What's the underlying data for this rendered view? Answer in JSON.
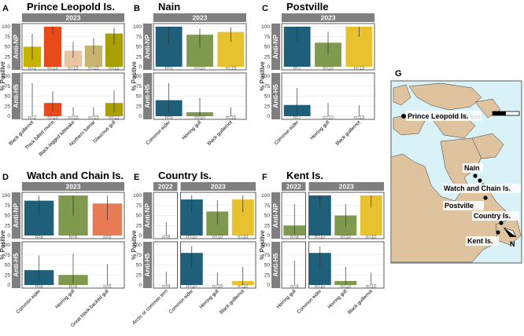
{
  "y_axis_label": "% Positive",
  "chart_data": [
    {
      "type": "bar",
      "letter": "A",
      "title": "Prince Leopold Is.",
      "strips": [
        {
          "label": "2023",
          "from": 0,
          "to": 4
        }
      ],
      "categories": [
        "Black guillemot",
        "Thick-billed murre",
        "Black-legged kittiwake",
        "Northern fulmar",
        "Glaucous gull"
      ],
      "colors": [
        "#c8b400",
        "#e84a1a",
        "#e8c4a0",
        "#c8b46e",
        "#a8a000"
      ],
      "ylim": [
        0,
        100
      ],
      "yticks": [
        0,
        25,
        50,
        75,
        100
      ],
      "series": [
        {
          "name": "Anti-NP",
          "values": [
            50,
            100,
            40,
            53,
            83
          ],
          "lower": [
            18,
            80,
            22,
            30,
            55
          ],
          "upper": [
            82,
            100,
            62,
            72,
            97
          ]
        },
        {
          "name": "Anti-H5",
          "values": [
            0,
            33,
            0,
            0,
            33
          ],
          "lower": [
            0,
            12,
            0,
            0,
            10
          ],
          "upper": [
            82,
            62,
            22,
            22,
            65
          ]
        }
      ],
      "n_labels": [
        "n=2",
        "n=15",
        "n=15",
        "n=15",
        "n=12"
      ]
    },
    {
      "type": "bar",
      "letter": "B",
      "title": "Nain",
      "strips": [
        {
          "label": "2023",
          "from": 0,
          "to": 2
        }
      ],
      "categories": [
        "Common eider",
        "Herring gull",
        "Black guillemot"
      ],
      "colors": [
        "#1f5f7a",
        "#7f9a4e",
        "#e8c22e"
      ],
      "ylim": [
        0,
        100
      ],
      "yticks": [
        0,
        25,
        50,
        75,
        100
      ],
      "series": [
        {
          "name": "Anti-NP",
          "values": [
            100,
            80,
            87
          ],
          "lower": [
            55,
            48,
            62
          ],
          "upper": [
            100,
            95,
            98
          ]
        },
        {
          "name": "Anti-H5",
          "values": [
            40,
            10,
            0
          ],
          "lower": [
            8,
            0,
            0
          ],
          "upper": [
            82,
            45,
            22
          ]
        }
      ],
      "n_labels": [
        "n=5",
        "n=10",
        "n=15"
      ]
    },
    {
      "type": "bar",
      "letter": "C",
      "title": "Postville",
      "strips": [
        {
          "label": "2023",
          "from": 0,
          "to": 2
        }
      ],
      "categories": [
        "Common eider",
        "Herring gull",
        "Black guillemot"
      ],
      "colors": [
        "#1f5f7a",
        "#7f9a4e",
        "#e8c22e"
      ],
      "ylim": [
        0,
        100
      ],
      "yticks": [
        0,
        25,
        50,
        75,
        100
      ],
      "series": [
        {
          "name": "Anti-NP",
          "values": [
            100,
            60,
            100
          ],
          "lower": [
            62,
            30,
            75
          ],
          "upper": [
            100,
            87,
            100
          ]
        },
        {
          "name": "Anti-H5",
          "values": [
            28,
            0,
            0
          ],
          "lower": [
            5,
            0,
            0
          ],
          "upper": [
            70,
            33,
            27
          ]
        }
      ],
      "n_labels": [
        "n=7",
        "n=10",
        "n=13"
      ]
    },
    {
      "type": "bar",
      "letter": "D",
      "title": "Watch and Chain Is.",
      "strips": [
        {
          "label": "2023",
          "from": 0,
          "to": 2
        }
      ],
      "categories": [
        "Common eider",
        "Herring gull",
        "Great black-backed gull"
      ],
      "colors": [
        "#1f5f7a",
        "#7f9a4e",
        "#e87a56"
      ],
      "ylim": [
        0,
        100
      ],
      "yticks": [
        0,
        25,
        50,
        75,
        100
      ],
      "series": [
        {
          "name": "Anti-NP",
          "values": [
            87,
            100,
            80
          ],
          "lower": [
            52,
            50,
            38
          ],
          "upper": [
            99,
            100,
            99
          ]
        },
        {
          "name": "Anti-H5",
          "values": [
            37,
            25,
            0
          ],
          "lower": [
            10,
            3,
            0
          ],
          "upper": [
            73,
            78,
            52
          ]
        }
      ],
      "n_labels": [
        "n=8",
        "n=4",
        "n=5"
      ]
    },
    {
      "type": "bar",
      "letter": "E",
      "title": "Country Is.",
      "strips": [
        {
          "label": "2022",
          "from": 0,
          "to": 0
        },
        {
          "label": "2023",
          "from": 1,
          "to": 3
        }
      ],
      "categories": [
        "Arctic or common tern",
        "Common eider",
        "Herring gull",
        "Black guillemot"
      ],
      "colors": [
        "#9e9e9e",
        "#1f5f7a",
        "#7f9a4e",
        "#e8c22e"
      ],
      "ylim": [
        0,
        100
      ],
      "yticks": [
        0,
        25,
        50,
        75,
        100
      ],
      "series": [
        {
          "name": "Anti-NP",
          "values": [
            0,
            90,
            60,
            90
          ],
          "lower": [
            0,
            58,
            28,
            58
          ],
          "upper": [
            33,
            100,
            88,
            100
          ]
        },
        {
          "name": "Anti-H5",
          "values": [
            0,
            80,
            0,
            10
          ],
          "lower": [
            0,
            45,
            0,
            0
          ],
          "upper": [
            33,
            97,
            31,
            45
          ]
        }
      ],
      "n_labels": [
        "n=9",
        "n=10",
        "n=10",
        "n=10"
      ]
    },
    {
      "type": "bar",
      "letter": "F",
      "title": "Kent Is.",
      "strips": [
        {
          "label": "2022",
          "from": 0,
          "to": 0
        },
        {
          "label": "2023",
          "from": 1,
          "to": 3
        }
      ],
      "categories": [
        "Herring gull",
        "Common eider",
        "Herring gull",
        "Black guillemot"
      ],
      "colors": [
        "#7f9a4e",
        "#1f5f7a",
        "#7f9a4e",
        "#e8c22e"
      ],
      "ylim": [
        0,
        100
      ],
      "yticks": [
        0,
        25,
        50,
        75,
        100
      ],
      "series": [
        {
          "name": "Anti-NP",
          "values": [
            25,
            100,
            50,
            100
          ],
          "lower": [
            3,
            72,
            22,
            70
          ],
          "upper": [
            78,
            100,
            78,
            100
          ]
        },
        {
          "name": "Anti-H5",
          "values": [
            0,
            80,
            10,
            0
          ],
          "lower": [
            0,
            45,
            0,
            0
          ],
          "upper": [
            60,
            96,
            45,
            31
          ]
        }
      ],
      "n_labels": [
        "n=4",
        "n=10",
        "n=10",
        "n=10"
      ]
    }
  ],
  "map": {
    "letter": "G",
    "scale_label": "600 km",
    "north_label": "N",
    "colors": {
      "water": "#d9f2f7",
      "land": "#dfc39f"
    },
    "sites": [
      "Prince Leopold Is.",
      "Nain",
      "Watch and Chain Is.",
      "Postville",
      "Country Is.",
      "Kent Is."
    ]
  }
}
